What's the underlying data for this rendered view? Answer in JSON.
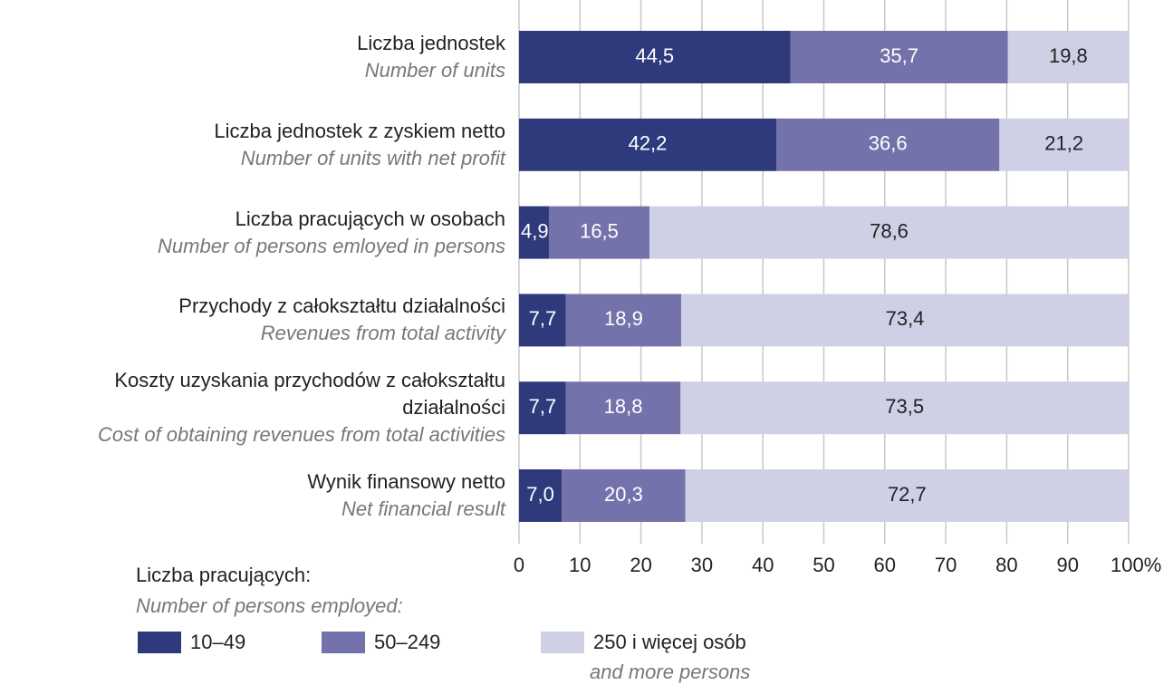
{
  "chart_data": {
    "type": "stacked_barh",
    "categories": [
      "Liczba jednostek",
      "Liczba jednostek z zyskiem netto",
      "Liczba pracujących w osobach",
      "Przychody z całokształtu działalności",
      "Koszty uzyskania przychodów z całokształtu działalności",
      "Wynik finansowy netto"
    ],
    "categories_en": [
      "Number of units",
      "Number of units with net profit",
      "Number of persons emloyed in persons",
      "Revenues from total activity",
      "Cost of obtaining revenues from total activities",
      "Net financial result"
    ],
    "series": [
      {
        "name": "10–49",
        "color": "#2e3a7c",
        "text_color": "#ffffff",
        "values": [
          44.5,
          42.2,
          4.9,
          7.7,
          7.7,
          7.0
        ],
        "value_labels": [
          "44,5",
          "42,2",
          "4,9",
          "7,7",
          "7,7",
          "7,0"
        ]
      },
      {
        "name": "50–249",
        "color": "#7472aa",
        "text_color": "#ffffff",
        "values": [
          35.7,
          36.6,
          16.5,
          18.9,
          18.8,
          20.3
        ],
        "value_labels": [
          "35,7",
          "36,6",
          "16,5",
          "18,9",
          "18,8",
          "20,3"
        ]
      },
      {
        "name": "250 i więcej osób",
        "name_en": "and more persons",
        "color": "#cfd0e6",
        "text_color": "#222222",
        "values": [
          19.8,
          21.2,
          78.6,
          73.4,
          73.5,
          72.7
        ],
        "value_labels": [
          "19,8",
          "21,2",
          "78,6",
          "73,4",
          "73,5",
          "72,7"
        ]
      }
    ],
    "xlim": [
      0,
      100
    ],
    "xticks": [
      0,
      10,
      20,
      30,
      40,
      50,
      60,
      70,
      80,
      90,
      {
        "value": 100,
        "label": "100%"
      }
    ],
    "grid": true,
    "legend_title": "Liczba pracujących:",
    "legend_title_en": "Number of persons employed:"
  }
}
